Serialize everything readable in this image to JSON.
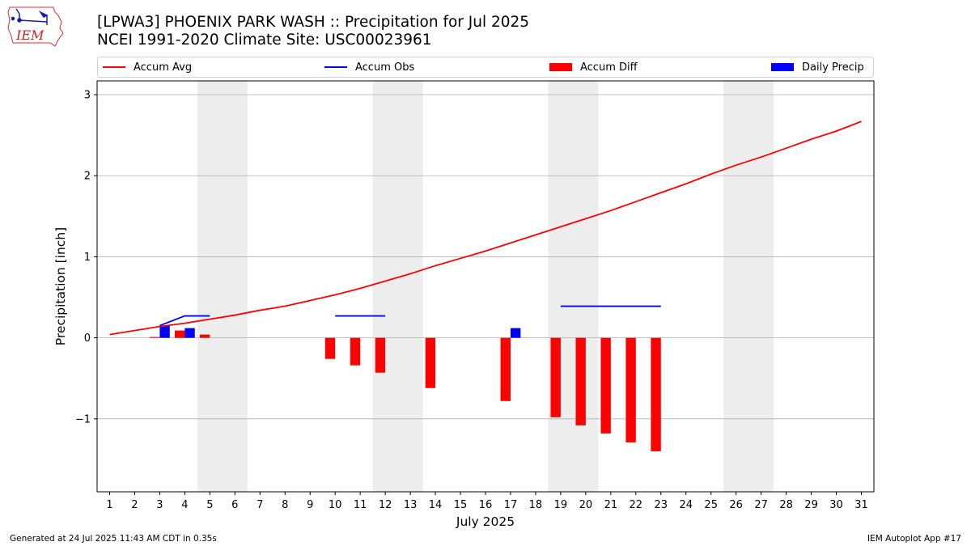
{
  "header": {
    "title_line1": "[LPWA3] PHOENIX PARK WASH :: Precipitation for Jul 2025",
    "title_line2": "NCEI 1991-2020 Climate Site: USC00023961",
    "logo_text": "IEM"
  },
  "legend": {
    "avg": "Accum Avg",
    "obs": "Accum Obs",
    "diff": "Accum Diff",
    "daily": "Daily Precip"
  },
  "footer": {
    "left": "Generated at 24 Jul 2025 11:43 AM CDT in 0.35s",
    "right": "IEM Autoplot App #17"
  },
  "colors": {
    "avg": "#ff0000",
    "obs": "#0000ff",
    "diff": "#ff0000",
    "daily": "#0000ff",
    "weekend": "#ededed",
    "grid": "#b0b0b0"
  },
  "chart_data": {
    "type": "bar",
    "xlabel": "July 2025",
    "ylabel": "Precipitation [inch]",
    "xlim": [
      0.5,
      31.5
    ],
    "ylim": [
      -1.9,
      3.17
    ],
    "yticks": [
      -1,
      0,
      1,
      2,
      3
    ],
    "ytick_labels": [
      "−1",
      "0",
      "1",
      "2",
      "3"
    ],
    "grid": "horizontal",
    "legend_position": "top",
    "days": [
      1,
      2,
      3,
      4,
      5,
      6,
      7,
      8,
      9,
      10,
      11,
      12,
      13,
      14,
      15,
      16,
      17,
      18,
      19,
      20,
      21,
      22,
      23,
      24,
      25,
      26,
      27,
      28,
      29,
      30,
      31
    ],
    "weekend_spans": [
      [
        5,
        6
      ],
      [
        12,
        13
      ],
      [
        19,
        20
      ],
      [
        26,
        27
      ]
    ],
    "series": [
      {
        "name": "Accum Avg",
        "kind": "line",
        "x": [
          1,
          2,
          3,
          4,
          5,
          6,
          7,
          8,
          9,
          10,
          11,
          12,
          13,
          14,
          15,
          16,
          17,
          18,
          19,
          20,
          21,
          22,
          23,
          24,
          25,
          26,
          27,
          28,
          29,
          30,
          31
        ],
        "values": [
          0.04,
          0.09,
          0.14,
          0.18,
          0.23,
          0.28,
          0.34,
          0.39,
          0.46,
          0.53,
          0.61,
          0.7,
          0.79,
          0.89,
          0.98,
          1.07,
          1.17,
          1.27,
          1.37,
          1.47,
          1.57,
          1.68,
          1.79,
          1.9,
          2.02,
          2.13,
          2.23,
          2.34,
          2.45,
          2.55,
          2.67
        ]
      },
      {
        "name": "Accum Obs",
        "kind": "line",
        "segments": [
          {
            "x": [
              3,
              4,
              5
            ],
            "values": [
              0.15,
              0.27,
              0.27
            ]
          },
          {
            "x": [
              10,
              11,
              12
            ],
            "values": [
              0.27,
              0.27,
              0.27
            ]
          },
          {
            "x": [
              19,
              20,
              21,
              22,
              23
            ],
            "values": [
              0.39,
              0.39,
              0.39,
              0.39,
              0.39
            ]
          }
        ]
      },
      {
        "name": "Accum Diff",
        "kind": "bar",
        "x": [
          3,
          4,
          5,
          10,
          11,
          12,
          14,
          17,
          19,
          20,
          21,
          22,
          23
        ],
        "values": [
          0.01,
          0.09,
          0.04,
          -0.26,
          -0.34,
          -0.43,
          -0.62,
          -0.78,
          -0.98,
          -1.08,
          -1.18,
          -1.29,
          -1.4
        ]
      },
      {
        "name": "Daily Precip",
        "kind": "bar",
        "x": [
          3,
          4,
          17
        ],
        "values": [
          0.15,
          0.12,
          0.12
        ]
      }
    ]
  }
}
